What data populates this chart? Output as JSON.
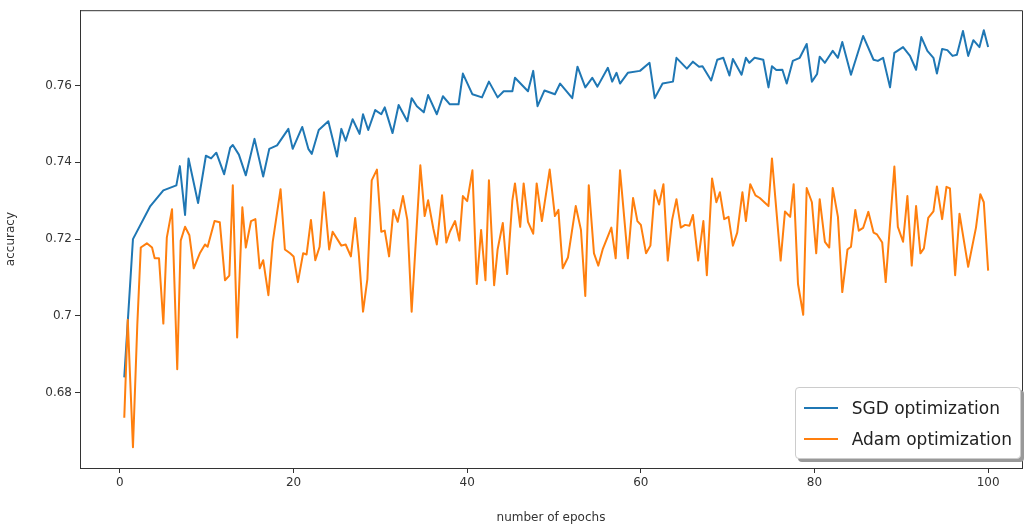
{
  "chart_data": {
    "type": "line",
    "xlabel": "number of epochs",
    "ylabel": "accuracy",
    "xlim": [
      -4.6,
      103.9
    ],
    "ylim": [
      0.6604,
      0.7796
    ],
    "xticks": [
      0,
      20,
      40,
      60,
      80,
      100
    ],
    "yticks": [
      0.68,
      0.7,
      0.72,
      0.74,
      0.76
    ],
    "grid": false,
    "legend": "bottom right",
    "marker": "none",
    "line_style": "solid",
    "series": [
      {
        "name": "SGD optimization",
        "color": "#1f77b4",
        "x": [
          0.5,
          1.5,
          3.5,
          5.0,
          6.5,
          6.9,
          7.5,
          7.9,
          9.0,
          9.9,
          10.5,
          11.1,
          12.0,
          12.7,
          13.0,
          13.7,
          14.5,
          15.5,
          16.5,
          17.2,
          18.1,
          19.4,
          19.9,
          21.0,
          21.7,
          22.1,
          22.9,
          24.0,
          25.0,
          25.5,
          26.0,
          26.8,
          27.6,
          28.0,
          28.6,
          29.4,
          30.1,
          30.5,
          31.4,
          32.1,
          33.1,
          33.6,
          34.2,
          35.0,
          35.5,
          36.5,
          37.2,
          38.0,
          39.0,
          39.5,
          40.6,
          41.7,
          42.5,
          43.5,
          44.2,
          45.2,
          45.5,
          47.0,
          47.6,
          48.1,
          48.9,
          50.1,
          50.7,
          52.1,
          52.7,
          53.6,
          54.4,
          55.0,
          56.2,
          56.7,
          57.2,
          57.6,
          58.5,
          59.9,
          61.0,
          61.6,
          62.5,
          63.7,
          64.1,
          65.3,
          66.0,
          66.7,
          67.1,
          68.1,
          68.8,
          69.5,
          70.2,
          70.6,
          71.6,
          72.1,
          72.5,
          73.1,
          74.1,
          74.7,
          75.1,
          75.6,
          76.3,
          76.8,
          77.5,
          78.3,
          79.1,
          79.7,
          80.3,
          80.6,
          81.2,
          82.1,
          82.7,
          83.2,
          84.2,
          85.6,
          86.8,
          87.3,
          87.9,
          88.7,
          89.2,
          90.2,
          91.0,
          91.7,
          92.3,
          93.0,
          93.7,
          94.1,
          94.7,
          95.3,
          95.9,
          96.4,
          97.1,
          97.7,
          98.3,
          99.0,
          99.5,
          100.0
        ],
        "values": [
          0.684,
          0.72,
          0.7286,
          0.7327,
          0.734,
          0.739,
          0.7263,
          0.741,
          0.7294,
          0.7417,
          0.741,
          0.7425,
          0.7369,
          0.7438,
          0.7445,
          0.742,
          0.7366,
          0.7461,
          0.7363,
          0.7435,
          0.7444,
          0.7487,
          0.7435,
          0.7492,
          0.7435,
          0.7422,
          0.7484,
          0.7507,
          0.7415,
          0.7487,
          0.7456,
          0.7512,
          0.7474,
          0.7525,
          0.7484,
          0.7536,
          0.7525,
          0.7543,
          0.7476,
          0.7549,
          0.7507,
          0.7567,
          0.7546,
          0.753,
          0.7575,
          0.7525,
          0.7572,
          0.7551,
          0.7551,
          0.7631,
          0.7577,
          0.7569,
          0.761,
          0.7569,
          0.7585,
          0.7585,
          0.762,
          0.7585,
          0.7638,
          0.7546,
          0.7587,
          0.7577,
          0.7605,
          0.7567,
          0.7649,
          0.7595,
          0.762,
          0.7597,
          0.7646,
          0.761,
          0.7633,
          0.7605,
          0.7633,
          0.7638,
          0.7659,
          0.7567,
          0.7605,
          0.761,
          0.7672,
          0.7644,
          0.7662,
          0.7649,
          0.765,
          0.7613,
          0.7667,
          0.7672,
          0.7626,
          0.7669,
          0.7628,
          0.7672,
          0.7659,
          0.7672,
          0.7667,
          0.7595,
          0.765,
          0.764,
          0.7641,
          0.7605,
          0.7664,
          0.7672,
          0.7708,
          0.761,
          0.763,
          0.7675,
          0.7659,
          0.769,
          0.7672,
          0.7713,
          0.7628,
          0.7729,
          0.7667,
          0.7664,
          0.7672,
          0.7595,
          0.7685,
          0.77,
          0.7677,
          0.7641,
          0.7726,
          0.769,
          0.7672,
          0.7631,
          0.7695,
          0.7692,
          0.7677,
          0.768,
          0.7742,
          0.7677,
          0.7718,
          0.77,
          0.7744,
          0.77
        ]
      },
      {
        "name": "Adam optimization",
        "color": "#ff7f0e",
        "x": [
          0.5,
          0.9,
          1.5,
          2.0,
          2.4,
          3.1,
          3.7,
          4.0,
          4.5,
          5.0,
          5.4,
          6.0,
          6.6,
          7.0,
          7.5,
          8.0,
          8.5,
          9.2,
          9.8,
          10.1,
          10.9,
          11.5,
          12.1,
          12.6,
          13.0,
          13.5,
          14.1,
          14.5,
          15.1,
          15.6,
          16.1,
          16.5,
          17.1,
          17.6,
          18.5,
          19.0,
          19.6,
          20.0,
          20.5,
          21.1,
          21.5,
          22.0,
          22.5,
          23.0,
          23.5,
          24.1,
          24.5,
          25.5,
          26.0,
          26.6,
          27.1,
          27.5,
          28.0,
          28.5,
          29.0,
          29.6,
          30.1,
          30.5,
          31.0,
          31.5,
          32.0,
          32.6,
          33.1,
          33.6,
          34.6,
          35.1,
          35.5,
          36.1,
          36.5,
          37.1,
          37.6,
          38.0,
          38.6,
          39.1,
          39.5,
          40.0,
          40.6,
          41.1,
          41.6,
          42.1,
          42.5,
          43.1,
          43.5,
          44.1,
          44.6,
          45.2,
          45.5,
          46.1,
          46.5,
          47.0,
          47.6,
          48.0,
          48.6,
          49.5,
          50.1,
          50.5,
          51.0,
          51.6,
          52.5,
          53.1,
          53.6,
          54.0,
          54.6,
          55.1,
          55.6,
          56.6,
          57.1,
          57.6,
          58.5,
          59.1,
          59.6,
          60.0,
          60.6,
          61.1,
          61.6,
          62.1,
          62.6,
          63.1,
          63.6,
          64.1,
          64.6,
          65.1,
          65.6,
          66.0,
          66.6,
          67.2,
          67.6,
          68.2,
          68.7,
          69.1,
          69.6,
          70.1,
          70.6,
          71.1,
          71.7,
          72.1,
          72.6,
          73.2,
          73.7,
          74.7,
          75.1,
          76.1,
          76.6,
          77.2,
          77.6,
          78.1,
          78.7,
          79.1,
          79.7,
          80.2,
          80.6,
          81.2,
          81.7,
          82.1,
          82.7,
          83.2,
          83.8,
          84.2,
          84.7,
          85.1,
          85.6,
          86.2,
          86.8,
          87.2,
          87.8,
          88.2,
          89.2,
          89.6,
          90.2,
          90.7,
          91.2,
          91.7,
          92.2,
          92.6,
          93.1,
          93.7,
          94.1,
          94.7,
          95.2,
          95.6,
          96.2,
          96.7,
          97.7,
          98.6,
          99.1,
          99.5,
          100.0
        ],
        "values": [
          0.6735,
          0.699,
          0.6658,
          0.6977,
          0.7178,
          0.7189,
          0.7178,
          0.715,
          0.715,
          0.698,
          0.7204,
          0.7278,
          0.6861,
          0.7196,
          0.7232,
          0.721,
          0.7124,
          0.7163,
          0.7186,
          0.718,
          0.7247,
          0.7244,
          0.7093,
          0.7105,
          0.734,
          0.6944,
          0.7283,
          0.7178,
          0.7247,
          0.7252,
          0.7124,
          0.7145,
          0.7054,
          0.7193,
          0.733,
          0.7173,
          0.7163,
          0.7155,
          0.7088,
          0.7163,
          0.716,
          0.725,
          0.7145,
          0.718,
          0.7322,
          0.7173,
          0.7219,
          0.7183,
          0.7186,
          0.7155,
          0.7255,
          0.7165,
          0.7011,
          0.7096,
          0.7353,
          0.7381,
          0.7219,
          0.7222,
          0.7155,
          0.7276,
          0.7245,
          0.7312,
          0.725,
          0.7011,
          0.7392,
          0.726,
          0.7301,
          0.7227,
          0.7186,
          0.7314,
          0.7191,
          0.7219,
          0.7247,
          0.7196,
          0.7312,
          0.7299,
          0.7379,
          0.7083,
          0.7224,
          0.7093,
          0.7353,
          0.708,
          0.7173,
          0.7242,
          0.7109,
          0.7301,
          0.7345,
          0.7232,
          0.7345,
          0.7245,
          0.7214,
          0.7345,
          0.7247,
          0.7381,
          0.726,
          0.7276,
          0.7124,
          0.7152,
          0.7286,
          0.7224,
          0.7052,
          0.734,
          0.7163,
          0.7131,
          0.7173,
          0.723,
          0.715,
          0.7379,
          0.715,
          0.7307,
          0.7247,
          0.7237,
          0.7163,
          0.7183,
          0.7327,
          0.729,
          0.7343,
          0.7144,
          0.725,
          0.7304,
          0.723,
          0.7237,
          0.7235,
          0.7263,
          0.7144,
          0.7247,
          0.7106,
          0.7358,
          0.7296,
          0.7322,
          0.7252,
          0.7258,
          0.7183,
          0.7217,
          0.7322,
          0.7247,
          0.7343,
          0.7314,
          0.7307,
          0.7286,
          0.741,
          0.7144,
          0.7272,
          0.7258,
          0.7343,
          0.7083,
          0.7003,
          0.7333,
          0.7296,
          0.7163,
          0.7304,
          0.7193,
          0.7178,
          0.7333,
          0.7258,
          0.7062,
          0.7173,
          0.718,
          0.7276,
          0.7222,
          0.7229,
          0.7271,
          0.7217,
          0.7212,
          0.7191,
          0.7088,
          0.7389,
          0.7232,
          0.7193,
          0.7312,
          0.7131,
          0.7286,
          0.7163,
          0.7176,
          0.7255,
          0.7272,
          0.7337,
          0.7252,
          0.7336,
          0.7332,
          0.7106,
          0.7266,
          0.7128,
          0.723,
          0.7317,
          0.7296,
          0.7118
        ]
      }
    ]
  }
}
